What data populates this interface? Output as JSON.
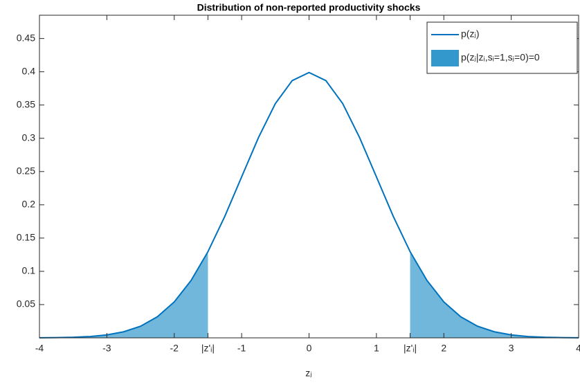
{
  "chart_data": {
    "type": "line",
    "title": "Distribution of non-reported productivity shocks",
    "x_label": "zⱼ",
    "x": [
      -4,
      -3.75,
      -3.5,
      -3.25,
      -3,
      -2.75,
      -2.5,
      -2.25,
      -2,
      -1.75,
      -1.5,
      -1.25,
      -1,
      -0.75,
      -0.5,
      -0.25,
      0,
      0.25,
      0.5,
      0.75,
      1,
      1.25,
      1.5,
      1.75,
      2,
      2.25,
      2.5,
      2.75,
      3,
      3.25,
      3.5,
      3.75,
      4
    ],
    "series": [
      {
        "name": "p(zⱼ)",
        "color": "#0072bd",
        "kind": "line",
        "values": [
          0.0001,
          0.0004,
          0.0009,
          0.002,
          0.0044,
          0.0091,
          0.0175,
          0.0317,
          0.054,
          0.0863,
          0.1295,
          0.1826,
          0.242,
          0.3011,
          0.3521,
          0.3867,
          0.3989,
          0.3867,
          0.3521,
          0.3011,
          0.242,
          0.1826,
          0.1295,
          0.0863,
          0.054,
          0.0317,
          0.0175,
          0.0091,
          0.0044,
          0.002,
          0.0009,
          0.0004,
          0.0001
        ]
      },
      {
        "name": "p(zⱼ|zᵢ,sᵢ=1,sⱼ=0)=0",
        "color": "#3399cc",
        "kind": "area",
        "values": [
          0.0001,
          0.0004,
          0.0009,
          0.002,
          0.0044,
          0.0091,
          0.0175,
          0.0317,
          0.054,
          0.0863,
          0.1295,
          null,
          null,
          null,
          null,
          null,
          null,
          null,
          null,
          null,
          null,
          null,
          0.1295,
          0.0863,
          0.054,
          0.0317,
          0.0175,
          0.0091,
          0.0044,
          0.002,
          0.0009,
          0.0004,
          0.0001
        ]
      }
    ],
    "xlim": [
      -4,
      4
    ],
    "ylim": [
      0,
      0.485
    ],
    "xticks": [
      -4,
      -3,
      -2,
      {
        "value": -1.5,
        "label": "|z'ᵢ|"
      },
      -1,
      0,
      1,
      {
        "value": 1.5,
        "label": "|z'ᵢ|"
      },
      2,
      3,
      4
    ],
    "yticks": [
      0.05,
      0.1,
      0.15,
      0.2,
      0.25,
      0.3,
      0.35,
      0.4,
      0.45
    ],
    "grid": false,
    "legend": "top-right"
  }
}
